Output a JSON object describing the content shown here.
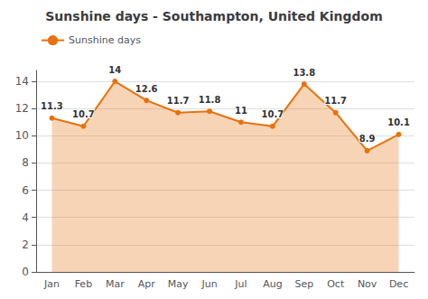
{
  "chart_data": {
    "type": "line",
    "title": "Sunshine days - Southampton, United Kingdom",
    "categories": [
      "Jan",
      "Feb",
      "Mar",
      "Apr",
      "May",
      "Jun",
      "Jul",
      "Aug",
      "Sep",
      "Oct",
      "Nov",
      "Dec"
    ],
    "series": [
      {
        "name": "Sunshine days",
        "color": "#e8720c",
        "values": [
          11.3,
          10.7,
          14,
          12.6,
          11.7,
          11.8,
          11.0,
          10.7,
          13.8,
          11.7,
          8.9,
          10.1
        ]
      }
    ],
    "ylim": [
      0,
      14.8
    ],
    "yticks": [
      0,
      2,
      4,
      6,
      8,
      10,
      12,
      14
    ],
    "grid": true,
    "legend": "upper left",
    "data_labels": true,
    "marker": "circle"
  }
}
